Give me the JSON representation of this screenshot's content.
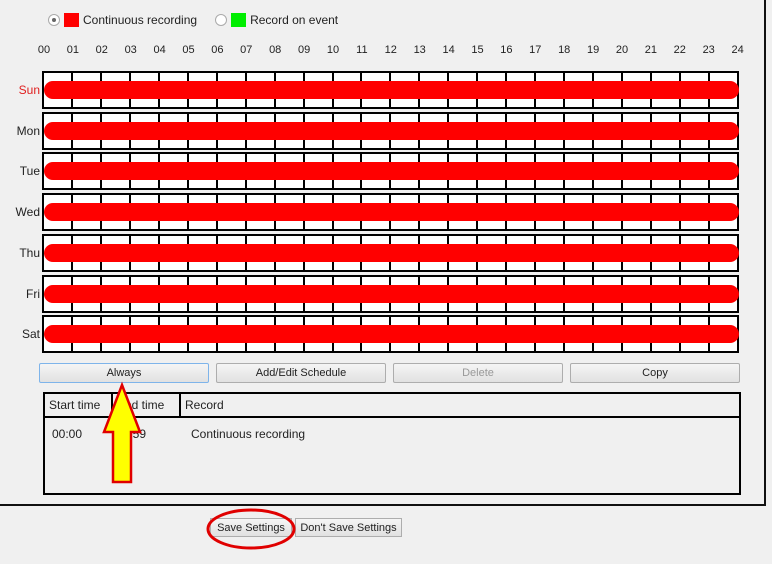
{
  "legend": {
    "continuous": "Continuous recording",
    "event": "Record on event",
    "continuous_color": "#ff0000",
    "event_color": "#00ee00",
    "selected": "continuous"
  },
  "hours": [
    "00",
    "01",
    "02",
    "03",
    "04",
    "05",
    "06",
    "07",
    "08",
    "09",
    "10",
    "11",
    "12",
    "13",
    "14",
    "15",
    "16",
    "17",
    "18",
    "19",
    "20",
    "21",
    "22",
    "23",
    "24"
  ],
  "days": [
    {
      "label": "Sun",
      "color": "#e02020"
    },
    {
      "label": "Mon"
    },
    {
      "label": "Tue"
    },
    {
      "label": "Wed"
    },
    {
      "label": "Thu"
    },
    {
      "label": "Fri"
    },
    {
      "label": "Sat"
    }
  ],
  "buttons": {
    "always": "Always",
    "add_edit": "Add/Edit Schedule",
    "delete": "Delete",
    "copy": "Copy"
  },
  "table": {
    "headers": [
      "Start time",
      "End time",
      "Record"
    ],
    "rows": [
      [
        "00:00",
        "23:59",
        "Continuous recording"
      ]
    ]
  },
  "footer": {
    "save": "Save Settings",
    "dont_save": "Don't Save Settings"
  },
  "annotations": {
    "arrow_color": "#ffff00",
    "circle_color": "#e00000"
  }
}
